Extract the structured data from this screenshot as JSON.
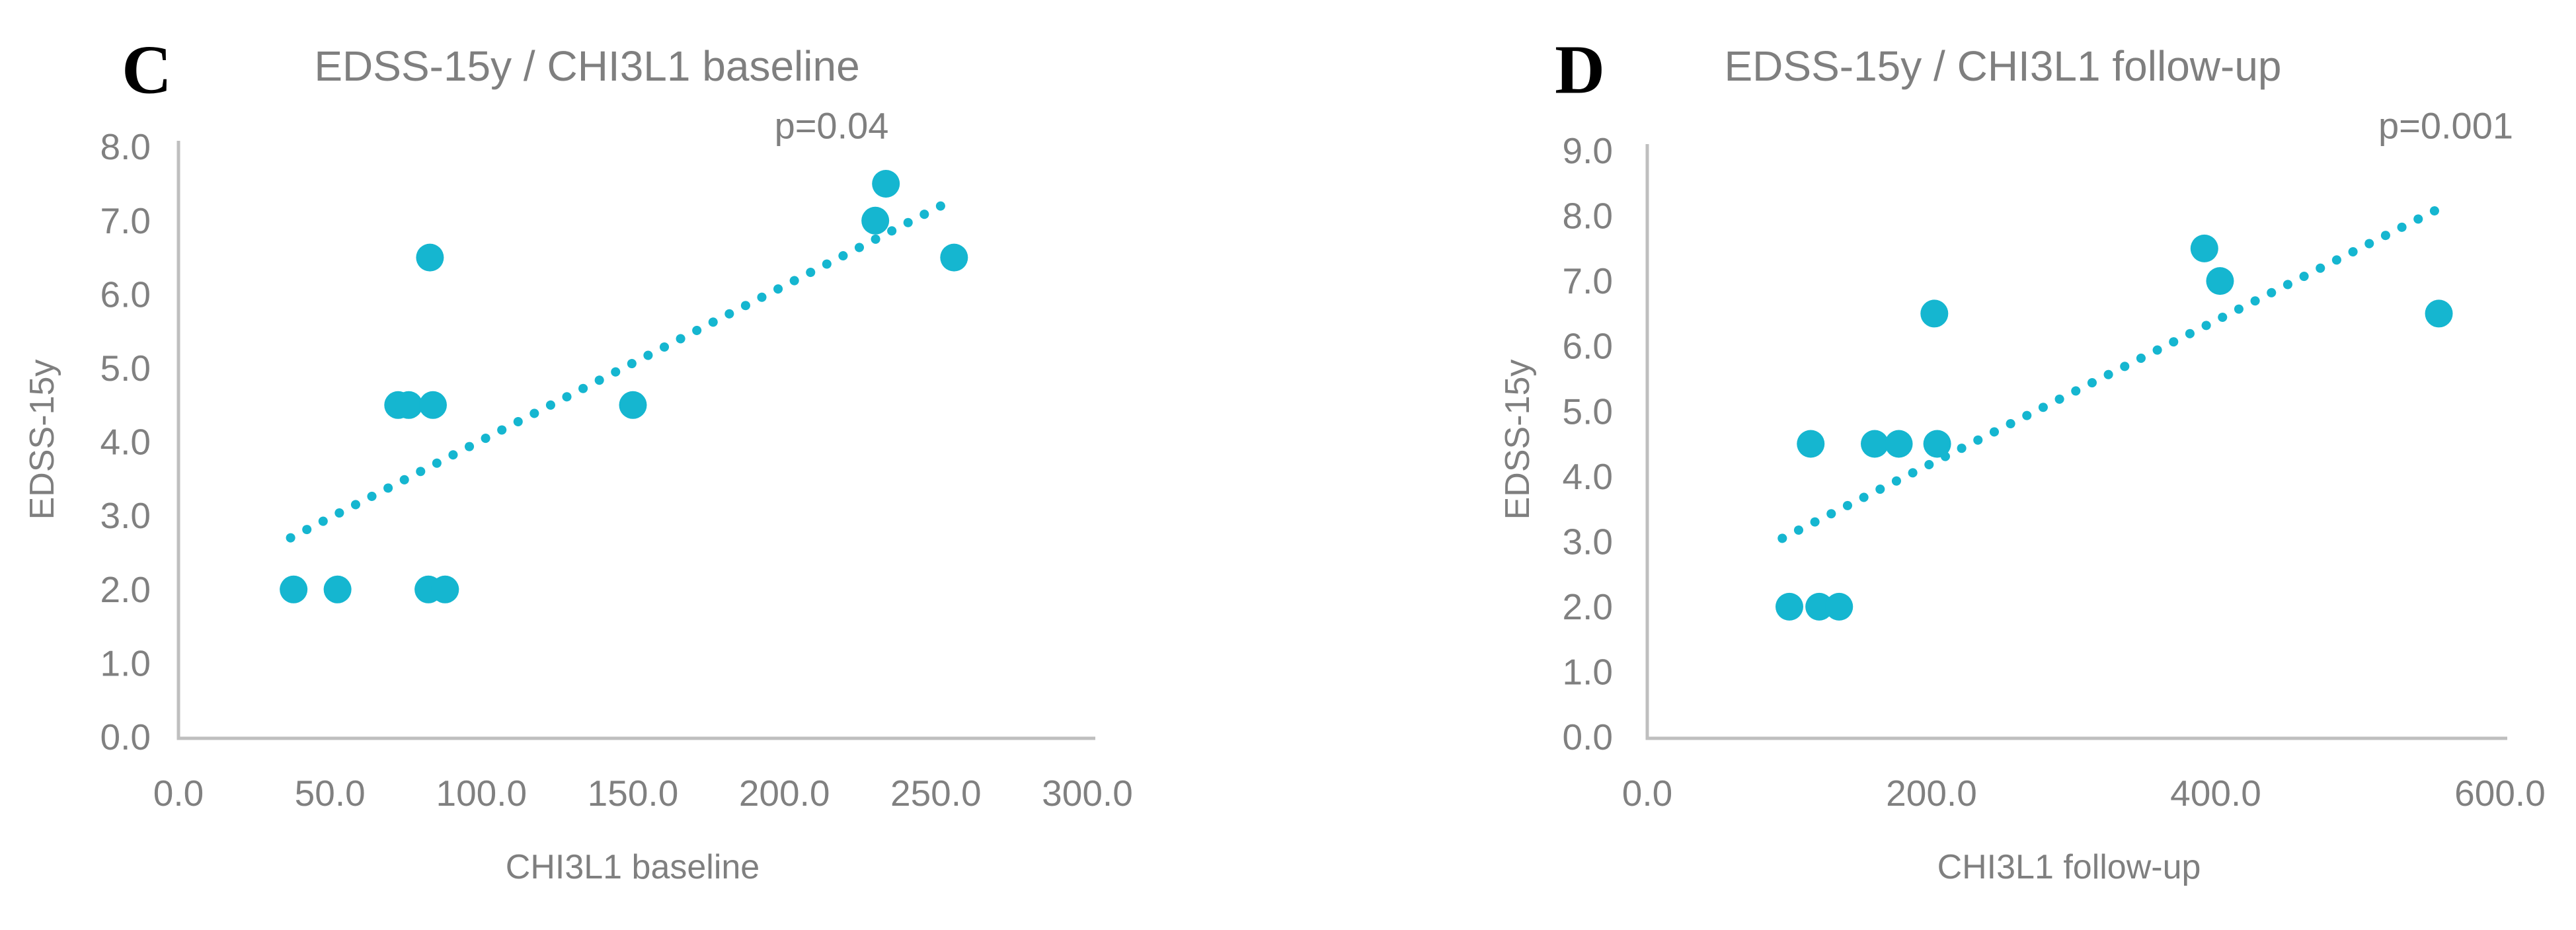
{
  "figure": {
    "background": "#ffffff",
    "marker_color": "#15B6D0",
    "axis_color": "#BFBFBF",
    "tick_label_color": "#808080",
    "title_color": "#7f7f7f",
    "panel_letter_color": "#000000"
  },
  "chart_data": [
    {
      "type": "scatter",
      "panel_label": "C",
      "title": "EDSS-15y / CHI3L1 baseline",
      "annotation": "p=0.04",
      "xlabel": "CHI3L1 baseline",
      "ylabel": "EDSS-15y",
      "xlim": [
        0,
        300
      ],
      "ylim": [
        0,
        8
      ],
      "grid": false,
      "legend": "none",
      "xtick_labels": [
        "0.0",
        "50.0",
        "100.0",
        "150.0",
        "200.0",
        "250.0",
        "300.0"
      ],
      "ytick_labels": [
        "0.0",
        "1.0",
        "2.0",
        "3.0",
        "4.0",
        "5.0",
        "6.0",
        "7.0",
        "8.0"
      ],
      "points": [
        [
          38,
          2.0
        ],
        [
          52.5,
          2.0
        ],
        [
          82.5,
          2.0
        ],
        [
          88,
          2.0
        ],
        [
          72.5,
          4.5
        ],
        [
          76,
          4.5
        ],
        [
          84,
          4.5
        ],
        [
          83,
          6.5
        ],
        [
          150,
          4.5
        ],
        [
          230,
          7.0
        ],
        [
          233.5,
          7.5
        ],
        [
          256,
          6.5
        ]
      ],
      "trendline": {
        "style": "dotted",
        "x": [
          37,
          254
        ],
        "y": [
          2.7,
          7.25
        ]
      }
    },
    {
      "type": "scatter",
      "panel_label": "D",
      "title": "EDSS-15y / CHI3L1 follow-up",
      "annotation": "p=0.001",
      "xlabel": "CHI3L1 follow-up",
      "ylabel": "EDSS-15y",
      "xlim": [
        0,
        600
      ],
      "ylim": [
        0,
        9
      ],
      "grid": false,
      "legend": "none",
      "xtick_labels": [
        "0.0",
        "200.0",
        "400.0",
        "600.0"
      ],
      "ytick_labels": [
        "0.0",
        "1.0",
        "2.0",
        "3.0",
        "4.0",
        "5.0",
        "6.0",
        "7.0",
        "8.0",
        "9.0"
      ],
      "points": [
        [
          100,
          2.0
        ],
        [
          121,
          2.0
        ],
        [
          135,
          2.0
        ],
        [
          115,
          4.5
        ],
        [
          160,
          4.5
        ],
        [
          177,
          4.5
        ],
        [
          204,
          4.5
        ],
        [
          202,
          6.5
        ],
        [
          392,
          7.5
        ],
        [
          403,
          7.0
        ],
        [
          557,
          6.5
        ]
      ],
      "trendline": {
        "style": "dotted",
        "x": [
          95,
          556
        ],
        "y": [
          3.05,
          8.1
        ]
      }
    }
  ]
}
